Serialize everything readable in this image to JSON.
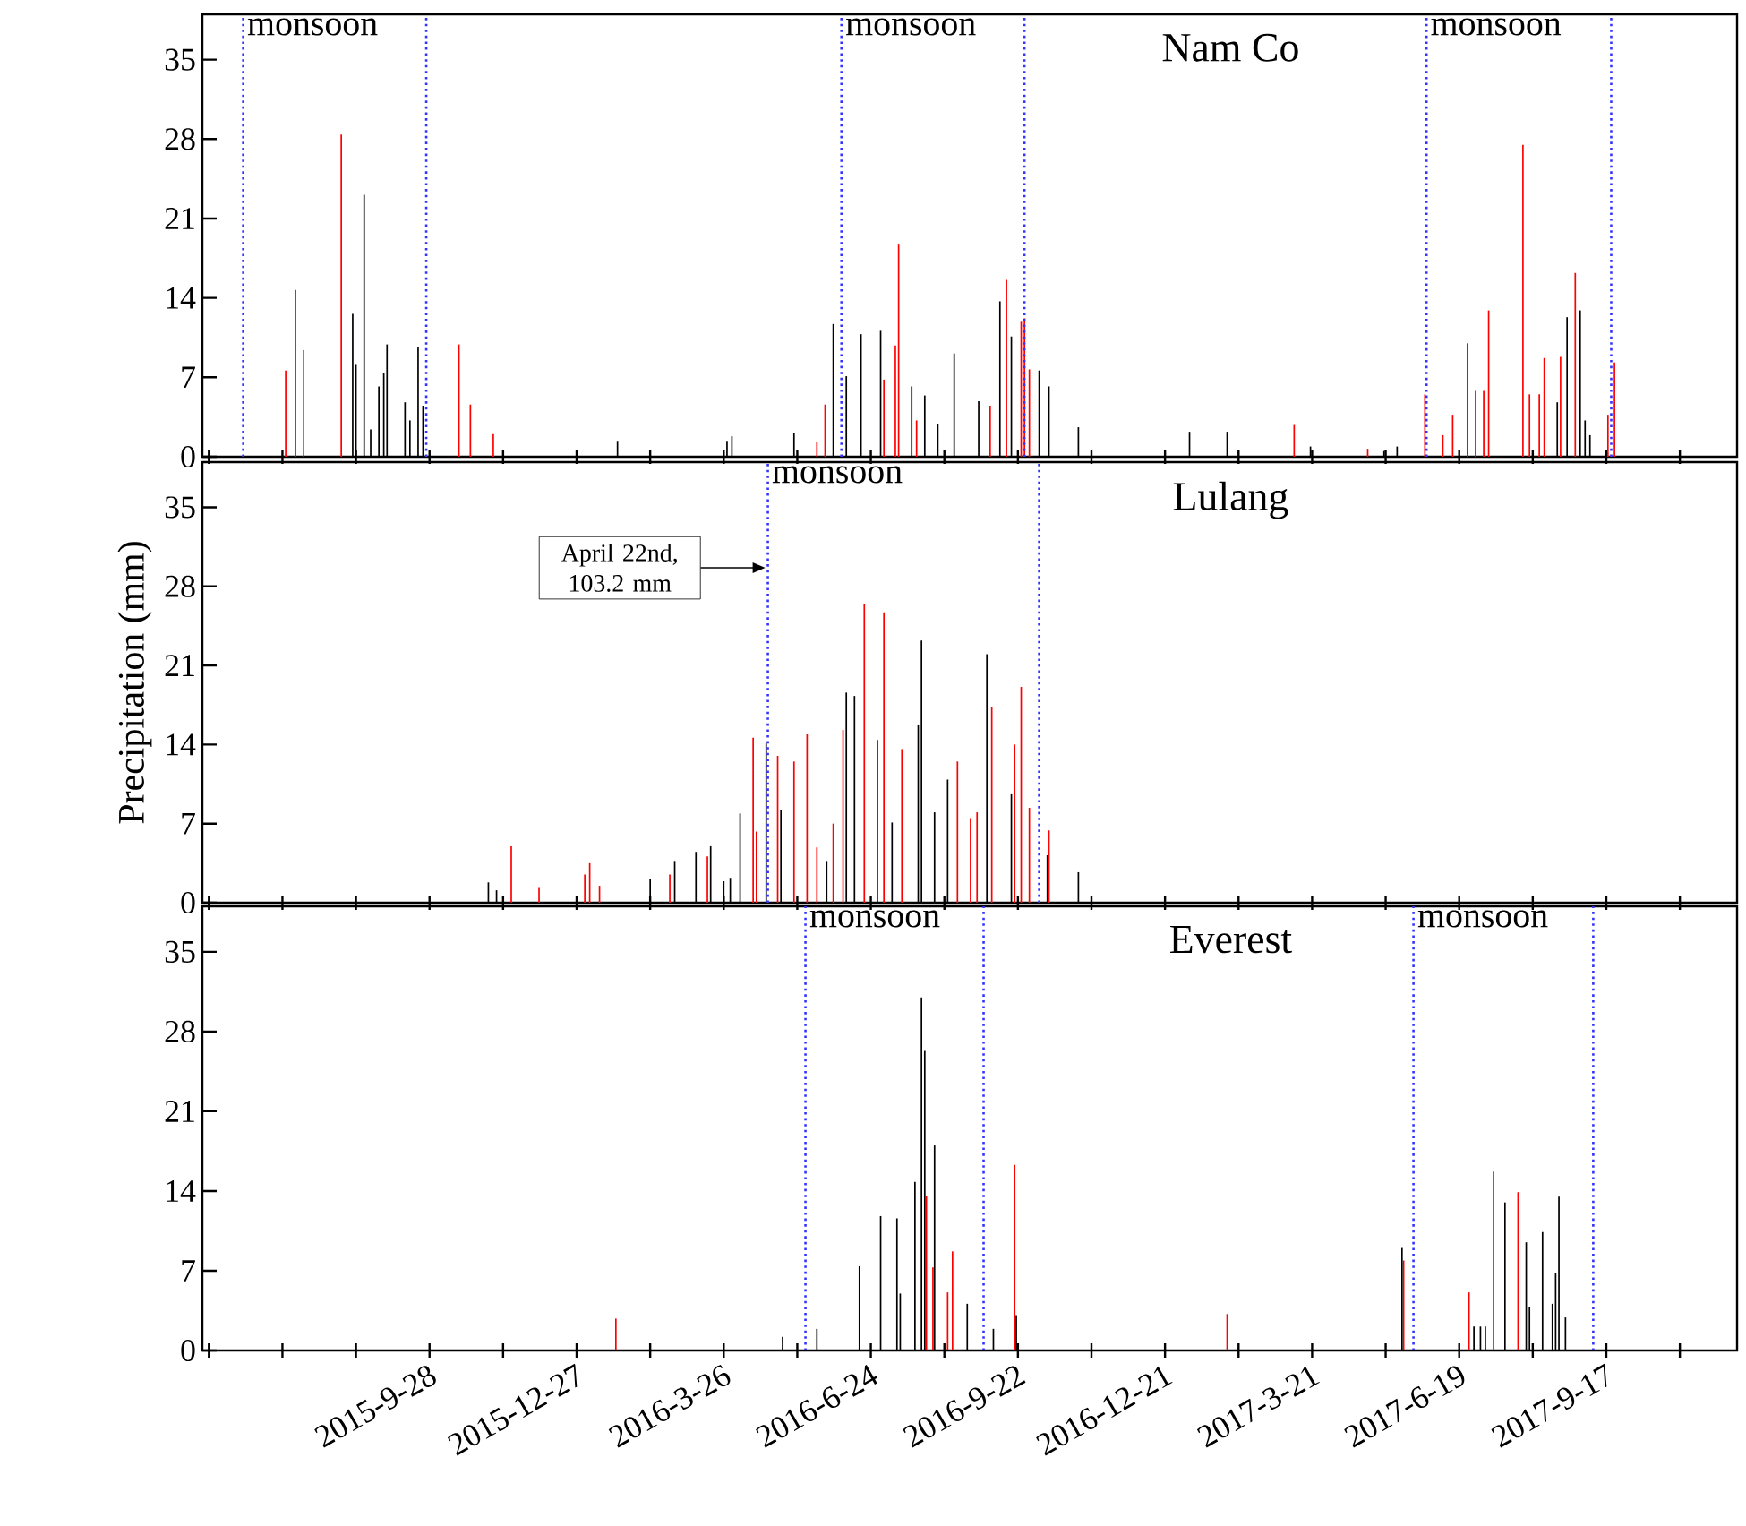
{
  "chart_data": [
    {
      "type": "bar",
      "title": "Nam Co",
      "xlim": [
        "2015-05-12",
        "2017-12-06"
      ],
      "ylim": [
        0,
        39
      ],
      "yticks": [
        0,
        7,
        14,
        21,
        28,
        35
      ],
      "tick_labels": "y",
      "xticks": [
        {
          "value": "2015-05-16",
          "label": null
        },
        {
          "value": "2015-06-30",
          "label": null
        },
        {
          "value": "2015-08-14",
          "label": null
        },
        {
          "value": "2015-09-28",
          "label": null
        },
        {
          "value": "2015-11-12",
          "label": null
        },
        {
          "value": "2015-12-27",
          "label": null
        },
        {
          "value": "2016-02-10",
          "label": null
        },
        {
          "value": "2016-03-26",
          "label": null
        },
        {
          "value": "2016-05-10",
          "label": null
        },
        {
          "value": "2016-06-24",
          "label": null
        },
        {
          "value": "2016-08-08",
          "label": null
        },
        {
          "value": "2016-09-22",
          "label": null
        },
        {
          "value": "2016-11-06",
          "label": null
        },
        {
          "value": "2016-12-21",
          "label": null
        },
        {
          "value": "2017-02-04",
          "label": null
        },
        {
          "value": "2017-03-21",
          "label": null
        },
        {
          "value": "2017-05-05",
          "label": null
        },
        {
          "value": "2017-06-19",
          "label": null
        },
        {
          "value": "2017-08-03",
          "label": null
        },
        {
          "value": "2017-09-17",
          "label": null
        },
        {
          "value": "2017-11-01",
          "label": null
        }
      ],
      "ref_lines": [
        {
          "axis": "x",
          "value": "2015-06-06",
          "label": "monsoon",
          "color": "#3333ff",
          "line_style": "dotted"
        },
        {
          "axis": "x",
          "value": "2015-09-26",
          "color": "#3333ff",
          "line_style": "dotted"
        },
        {
          "axis": "x",
          "value": "2016-06-06",
          "label": "monsoon",
          "color": "#3333ff",
          "line_style": "dotted"
        },
        {
          "axis": "x",
          "value": "2016-09-26",
          "color": "#3333ff",
          "line_style": "dotted"
        },
        {
          "axis": "x",
          "value": "2017-05-30",
          "label": "monsoon",
          "color": "#3333ff",
          "line_style": "dotted"
        },
        {
          "axis": "x",
          "value": "2017-09-20",
          "color": "#3333ff",
          "line_style": "dotted"
        }
      ],
      "series": [
        {
          "color": "#ff0000",
          "x": [
            "2015-07-02",
            "2015-07-08",
            "2015-07-13",
            "2015-08-05",
            "2015-10-16",
            "2015-10-23",
            "2015-11-06",
            "2016-05-22",
            "2016-05-27",
            "2016-07-02",
            "2016-07-09",
            "2016-07-11",
            "2016-07-22",
            "2016-09-05",
            "2016-09-15",
            "2016-09-24",
            "2016-09-26",
            "2016-09-29",
            "2017-03-10",
            "2017-04-24",
            "2017-05-29",
            "2017-06-09",
            "2017-06-15",
            "2017-06-24",
            "2017-06-29",
            "2017-07-04",
            "2017-07-07",
            "2017-07-28",
            "2017-08-01",
            "2017-08-07",
            "2017-08-10",
            "2017-08-20",
            "2017-08-29",
            "2017-09-18",
            "2017-09-22"
          ],
          "values": [
            7.6,
            14.7,
            9.4,
            28.4,
            9.9,
            4.6,
            2.0,
            1.3,
            4.6,
            6.8,
            9.8,
            18.7,
            3.2,
            4.5,
            15.6,
            11.9,
            12.2,
            7.7,
            2.8,
            0.7,
            5.5,
            1.9,
            3.7,
            10.0,
            5.8,
            5.8,
            12.9,
            27.5,
            5.5,
            5.5,
            8.7,
            8.8,
            16.2,
            3.7,
            8.3
          ]
        },
        {
          "color": "#000000",
          "x": [
            "2015-08-12",
            "2015-08-14",
            "2015-08-19",
            "2015-08-23",
            "2015-08-28",
            "2015-08-31",
            "2015-09-02",
            "2015-09-13",
            "2015-09-16",
            "2015-09-21",
            "2015-09-24",
            "2016-01-21",
            "2016-03-28",
            "2016-03-31",
            "2016-05-08",
            "2016-06-01",
            "2016-06-09",
            "2016-06-18",
            "2016-06-30",
            "2016-07-19",
            "2016-07-27",
            "2016-08-04",
            "2016-08-14",
            "2016-08-29",
            "2016-09-11",
            "2016-09-18",
            "2016-10-05",
            "2016-10-11",
            "2016-10-29",
            "2017-01-05",
            "2017-01-28",
            "2017-03-20",
            "2017-05-04",
            "2017-05-12",
            "2017-08-18",
            "2017-08-24",
            "2017-09-01",
            "2017-09-04",
            "2017-09-07"
          ],
          "values": [
            12.6,
            8.1,
            23.1,
            2.4,
            6.2,
            7.4,
            9.9,
            4.8,
            3.2,
            9.7,
            4.5,
            1.4,
            1.4,
            1.8,
            2.1,
            11.7,
            7.1,
            10.8,
            11.1,
            6.2,
            5.4,
            2.9,
            9.1,
            4.9,
            13.7,
            10.6,
            7.6,
            6.2,
            2.6,
            2.2,
            2.2,
            0.9,
            0.5,
            0.9,
            4.8,
            12.3,
            12.9,
            3.2,
            1.9
          ]
        }
      ]
    },
    {
      "type": "bar",
      "title": "Lulang",
      "ylabel": "Precipitation (mm)",
      "xlim": [
        "2015-05-12",
        "2017-12-06"
      ],
      "ylim": [
        0,
        39
      ],
      "yticks": [
        0,
        7,
        14,
        21,
        28,
        35
      ],
      "tick_labels": "y",
      "xticks": [
        {
          "value": "2015-05-16",
          "label": null
        },
        {
          "value": "2015-06-30",
          "label": null
        },
        {
          "value": "2015-08-14",
          "label": null
        },
        {
          "value": "2015-09-28",
          "label": null
        },
        {
          "value": "2015-11-12",
          "label": null
        },
        {
          "value": "2015-12-27",
          "label": null
        },
        {
          "value": "2016-02-10",
          "label": null
        },
        {
          "value": "2016-03-26",
          "label": null
        },
        {
          "value": "2016-05-10",
          "label": null
        },
        {
          "value": "2016-06-24",
          "label": null
        },
        {
          "value": "2016-08-08",
          "label": null
        },
        {
          "value": "2016-09-22",
          "label": null
        },
        {
          "value": "2016-11-06",
          "label": null
        },
        {
          "value": "2016-12-21",
          "label": null
        },
        {
          "value": "2017-02-04",
          "label": null
        },
        {
          "value": "2017-03-21",
          "label": null
        },
        {
          "value": "2017-05-05",
          "label": null
        },
        {
          "value": "2017-06-19",
          "label": null
        },
        {
          "value": "2017-08-03",
          "label": null
        },
        {
          "value": "2017-09-17",
          "label": null
        },
        {
          "value": "2017-11-01",
          "label": null
        }
      ],
      "ref_lines": [
        {
          "axis": "x",
          "value": "2016-04-22",
          "label": "monsoon",
          "color": "#3333ff",
          "line_style": "dotted"
        },
        {
          "axis": "x",
          "value": "2016-10-05",
          "color": "#3333ff",
          "line_style": "dotted"
        }
      ],
      "annotations": [
        "April 22nd, 103.2 mm"
      ],
      "series": [
        {
          "color": "#ff0000",
          "x": [
            "2015-11-17",
            "2015-12-04",
            "2016-01-01",
            "2016-01-04",
            "2016-01-10",
            "2016-02-22",
            "2016-03-16",
            "2016-04-13",
            "2016-04-15",
            "2016-04-22",
            "2016-04-28",
            "2016-05-08",
            "2016-05-16",
            "2016-05-22",
            "2016-06-01",
            "2016-06-07",
            "2016-06-20",
            "2016-07-02",
            "2016-07-13",
            "2016-08-16",
            "2016-08-24",
            "2016-08-28",
            "2016-09-06",
            "2016-09-20",
            "2016-09-24",
            "2016-09-29",
            "2016-10-11"
          ],
          "values": [
            5.0,
            1.3,
            2.5,
            3.5,
            1.5,
            2.5,
            4.1,
            14.6,
            6.3,
            null,
            13.0,
            12.5,
            14.9,
            4.9,
            7.0,
            15.3,
            26.4,
            25.7,
            13.6,
            12.5,
            7.5,
            8.0,
            17.3,
            14.0,
            19.1,
            8.4,
            6.4
          ]
        },
        {
          "color": "#000000",
          "x": [
            "2015-11-03",
            "2015-11-08",
            "2016-02-10",
            "2016-02-25",
            "2016-03-09",
            "2016-03-18",
            "2016-03-26",
            "2016-03-30",
            "2016-04-05",
            "2016-04-21",
            "2016-04-30",
            "2016-05-28",
            "2016-06-09",
            "2016-06-14",
            "2016-06-28",
            "2016-07-07",
            "2016-07-23",
            "2016-07-25",
            "2016-08-02",
            "2016-08-10",
            "2016-09-03",
            "2016-09-18",
            "2016-10-10",
            "2016-10-29"
          ],
          "values": [
            1.8,
            1.1,
            2.1,
            3.7,
            4.5,
            5.0,
            1.9,
            2.2,
            7.9,
            14.1,
            8.2,
            3.7,
            18.6,
            18.3,
            14.4,
            7.1,
            15.7,
            23.2,
            8.0,
            10.9,
            22.0,
            9.6,
            4.2,
            2.7
          ]
        }
      ]
    },
    {
      "type": "bar",
      "title": "Everest",
      "xlim": [
        "2015-05-12",
        "2017-12-06"
      ],
      "ylim": [
        0,
        39
      ],
      "yticks": [
        0,
        7,
        14,
        21,
        28,
        35
      ],
      "xticks": [
        {
          "value": "2015-05-16",
          "label": null
        },
        {
          "value": "2015-06-30",
          "label": null
        },
        {
          "value": "2015-08-14",
          "label": null
        },
        {
          "value": "2015-09-28",
          "label": "2015-9-28"
        },
        {
          "value": "2015-11-12",
          "label": null
        },
        {
          "value": "2015-12-27",
          "label": "2015-12-27"
        },
        {
          "value": "2016-02-10",
          "label": null
        },
        {
          "value": "2016-03-26",
          "label": "2016-3-26"
        },
        {
          "value": "2016-05-10",
          "label": null
        },
        {
          "value": "2016-06-24",
          "label": "2016-6-24"
        },
        {
          "value": "2016-08-08",
          "label": null
        },
        {
          "value": "2016-09-22",
          "label": "2016-9-22"
        },
        {
          "value": "2016-11-06",
          "label": null
        },
        {
          "value": "2016-12-21",
          "label": "2016-12-21"
        },
        {
          "value": "2017-02-04",
          "label": null
        },
        {
          "value": "2017-03-21",
          "label": "2017-3-21"
        },
        {
          "value": "2017-05-05",
          "label": null
        },
        {
          "value": "2017-06-19",
          "label": "2017-6-19"
        },
        {
          "value": "2017-08-03",
          "label": null
        },
        {
          "value": "2017-09-17",
          "label": "2017-9-17"
        },
        {
          "value": "2017-11-01",
          "label": null
        }
      ],
      "ref_lines": [
        {
          "axis": "x",
          "value": "2016-05-15",
          "label": "monsoon",
          "color": "#3333ff",
          "line_style": "dotted"
        },
        {
          "axis": "x",
          "value": "2016-09-01",
          "color": "#3333ff",
          "line_style": "dotted"
        },
        {
          "axis": "x",
          "value": "2017-05-22",
          "label": "monsoon",
          "color": "#3333ff",
          "line_style": "dotted"
        },
        {
          "axis": "x",
          "value": "2017-09-09",
          "color": "#3333ff",
          "line_style": "dotted"
        }
      ],
      "series": [
        {
          "color": "#ff0000",
          "x": [
            "2016-01-20",
            "2016-07-28",
            "2016-08-01",
            "2016-08-10",
            "2016-08-13",
            "2016-09-20",
            "2017-01-28",
            "2017-05-16",
            "2017-06-25",
            "2017-07-10",
            "2017-07-25"
          ],
          "values": [
            2.8,
            13.6,
            7.3,
            5.1,
            8.7,
            16.3,
            3.2,
            7.9,
            5.1,
            15.7,
            13.9
          ]
        },
        {
          "color": "#000000",
          "x": [
            "2016-05-01",
            "2016-05-22",
            "2016-06-17",
            "2016-06-30",
            "2016-07-10",
            "2016-07-12",
            "2016-07-21",
            "2016-07-25",
            "2016-07-27",
            "2016-08-02",
            "2016-08-22",
            "2016-09-07",
            "2016-09-21",
            "2017-05-15",
            "2017-06-28",
            "2017-07-02",
            "2017-07-05",
            "2017-07-17",
            "2017-07-30",
            "2017-08-01",
            "2017-08-09",
            "2017-08-15",
            "2017-08-17",
            "2017-08-19",
            "2017-08-23"
          ],
          "values": [
            1.2,
            1.9,
            7.4,
            11.8,
            11.6,
            5.0,
            14.8,
            31.0,
            26.3,
            18.0,
            4.1,
            1.9,
            3.1,
            9.0,
            2.1,
            2.1,
            2.1,
            13.0,
            9.5,
            3.8,
            10.4,
            4.1,
            6.8,
            13.5,
            2.9
          ]
        }
      ]
    }
  ]
}
